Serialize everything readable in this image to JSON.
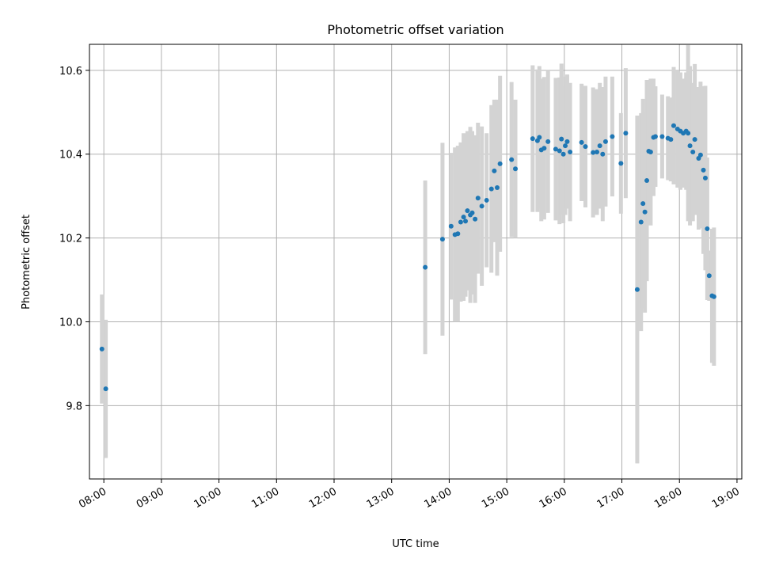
{
  "chart_data": {
    "type": "scatter",
    "title": "Photometric offset variation",
    "xlabel": "UTC time",
    "ylabel": "Photometric offset",
    "xlim": [
      "07:45",
      "19:05"
    ],
    "ylim": [
      9.625,
      10.662
    ],
    "grid": true,
    "x_ticks": [
      "08:00",
      "09:00",
      "10:00",
      "11:00",
      "12:00",
      "13:00",
      "14:00",
      "15:00",
      "16:00",
      "17:00",
      "18:00",
      "19:00"
    ],
    "y_ticks": [
      9.8,
      10.0,
      10.2,
      10.4,
      10.6
    ],
    "y_tick_labels": [
      "9.8",
      "10.0",
      "10.2",
      "10.4",
      "10.6"
    ],
    "colors": {
      "points": "#1f77b4",
      "errorbars": "#d3d3d3",
      "grid": "#b0b0b0"
    },
    "series": [
      {
        "x": [
          "07:58",
          "08:02",
          "13:35",
          "13:53",
          "14:02",
          "14:06",
          "14:09",
          "14:12",
          "14:15",
          "14:17",
          "14:19",
          "14:22",
          "14:24",
          "14:27",
          "14:30",
          "14:34",
          "14:39",
          "14:44",
          "14:47",
          "14:50",
          "14:53",
          "15:05",
          "15:09",
          "15:27",
          "15:32",
          "15:34",
          "15:36",
          "15:39",
          "15:43",
          "15:51",
          "15:55",
          "15:57",
          "15:59",
          "16:01",
          "16:03",
          "16:06",
          "16:18",
          "16:22",
          "16:30",
          "16:34",
          "16:37",
          "16:40",
          "16:43",
          "16:50",
          "16:59",
          "17:04",
          "17:16",
          "17:20",
          "17:22",
          "17:24",
          "17:26",
          "17:28",
          "17:30",
          "17:33",
          "17:35",
          "17:42",
          "17:48",
          "17:51",
          "17:54",
          "17:58",
          "18:01",
          "18:04",
          "18:07",
          "18:09",
          "18:11",
          "18:14",
          "18:16",
          "18:20",
          "18:22",
          "18:25",
          "18:27",
          "18:29",
          "18:31",
          "18:34",
          "18:36"
        ],
        "y": [
          9.935,
          9.84,
          10.13,
          10.197,
          10.228,
          10.208,
          10.21,
          10.238,
          10.25,
          10.24,
          10.265,
          10.255,
          10.26,
          10.245,
          10.295,
          10.276,
          10.29,
          10.317,
          10.36,
          10.32,
          10.377,
          10.387,
          10.365,
          10.437,
          10.432,
          10.44,
          10.41,
          10.414,
          10.43,
          10.412,
          10.408,
          10.436,
          10.4,
          10.42,
          10.43,
          10.405,
          10.428,
          10.418,
          10.404,
          10.405,
          10.42,
          10.4,
          10.43,
          10.442,
          10.378,
          10.45,
          10.077,
          10.238,
          10.282,
          10.262,
          10.337,
          10.407,
          10.405,
          10.44,
          10.442,
          10.442,
          10.438,
          10.435,
          10.468,
          10.46,
          10.455,
          10.45,
          10.455,
          10.45,
          10.42,
          10.405,
          10.435,
          10.39,
          10.398,
          10.362,
          10.343,
          10.222,
          10.11,
          10.062,
          10.06
        ],
        "yerr": [
          0.13,
          0.165,
          0.207,
          0.23,
          0.175,
          0.208,
          0.21,
          0.19,
          0.2,
          0.18,
          0.19,
          0.21,
          0.195,
          0.2,
          0.18,
          0.19,
          0.16,
          0.2,
          0.17,
          0.21,
          0.21,
          0.185,
          0.165,
          0.175,
          0.17,
          0.17,
          0.17,
          0.17,
          0.17,
          0.17,
          0.175,
          0.18,
          0.165,
          0.165,
          0.16,
          0.165,
          0.14,
          0.145,
          0.155,
          0.15,
          0.15,
          0.16,
          0.155,
          0.143,
          0.12,
          0.155,
          0.415,
          0.26,
          0.25,
          0.24,
          0.24,
          0.17,
          0.175,
          0.14,
          0.12,
          0.1,
          0.1,
          0.1,
          0.14,
          0.14,
          0.14,
          0.13,
          0.14,
          0.21,
          0.19,
          0.165,
          0.18,
          0.17,
          0.175,
          0.2,
          0.22,
          0.17,
          0.06,
          0.16,
          0.165
        ]
      }
    ]
  }
}
